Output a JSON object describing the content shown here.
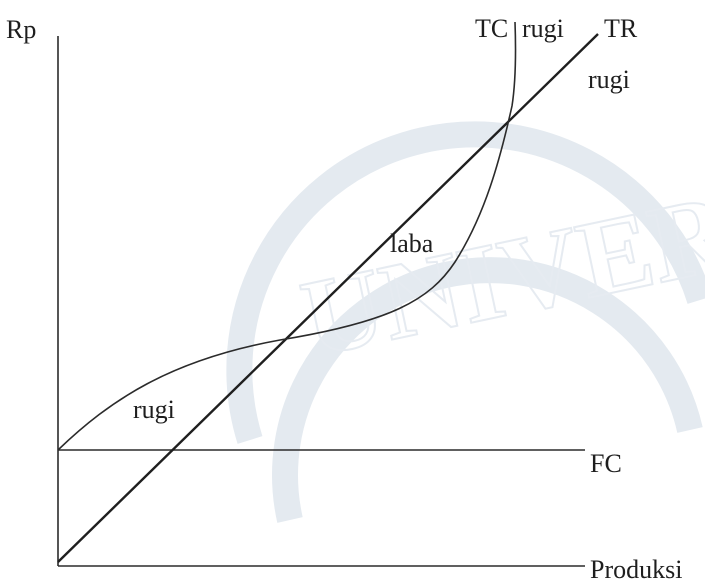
{
  "axes": {
    "y_label": "Rp",
    "x_label": "Produksi"
  },
  "curves": {
    "tc_label": "TC",
    "tr_label": "TR",
    "fc_label": "FC"
  },
  "regions": {
    "loss_top_label": "rugi",
    "loss_right_label": "rugi",
    "profit_label": "laba",
    "loss_bottom_label": "rugi"
  },
  "watermark": {
    "text": "UNIVERSI"
  }
}
